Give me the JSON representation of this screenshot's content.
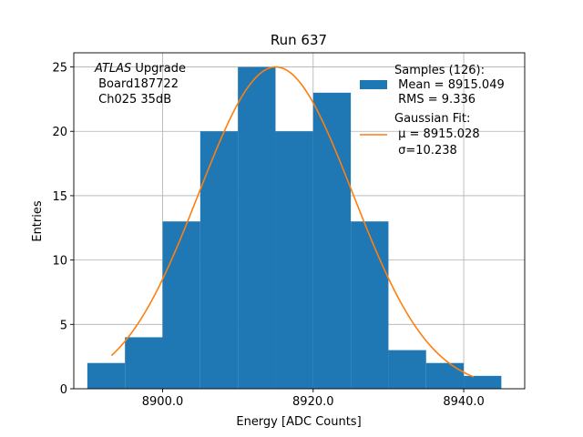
{
  "chart_data": {
    "type": "bar",
    "title": "Run 637",
    "xlabel": "Energy [ADC Counts]",
    "ylabel": "Entries",
    "xlim": [
      8888.2,
      8948.1
    ],
    "ylim": [
      0,
      26.1
    ],
    "xticks": [
      8900.0,
      8920.0,
      8940.0
    ],
    "xtick_labels": [
      "8900.0",
      "8920.0",
      "8940.0"
    ],
    "yticks": [
      0,
      5,
      10,
      15,
      20,
      25
    ],
    "ytick_labels": [
      "0",
      "5",
      "10",
      "15",
      "20",
      "25"
    ],
    "grid": true,
    "bin_edges": [
      8890,
      8895,
      8900,
      8905,
      8910,
      8915,
      8920,
      8925,
      8930,
      8935,
      8940,
      8945
    ],
    "values": [
      2,
      4,
      13,
      20,
      25,
      20,
      23,
      13,
      3,
      2,
      1
    ],
    "bar_color": "#1f77b4",
    "fit": {
      "name": "Gaussian Fit",
      "mu": 8915.028,
      "sigma": 10.238,
      "amplitude": 25.0,
      "x_range": [
        8893.2,
        8941.3
      ],
      "color": "#ff7f0e"
    },
    "annotation": {
      "italic_part": "ATLAS",
      "line1_rest": " Upgrade",
      "line2": " Board187722",
      "line3": " Ch025 35dB"
    },
    "legend": {
      "position": "top-right",
      "samples_title": "Samples (126):",
      "samples_mean": " Mean = 8915.049",
      "samples_rms": " RMS = 9.336",
      "fit_title": "Gaussian Fit:",
      "fit_mu": " μ = 8915.028",
      "fit_sigma": " σ=10.238"
    }
  }
}
